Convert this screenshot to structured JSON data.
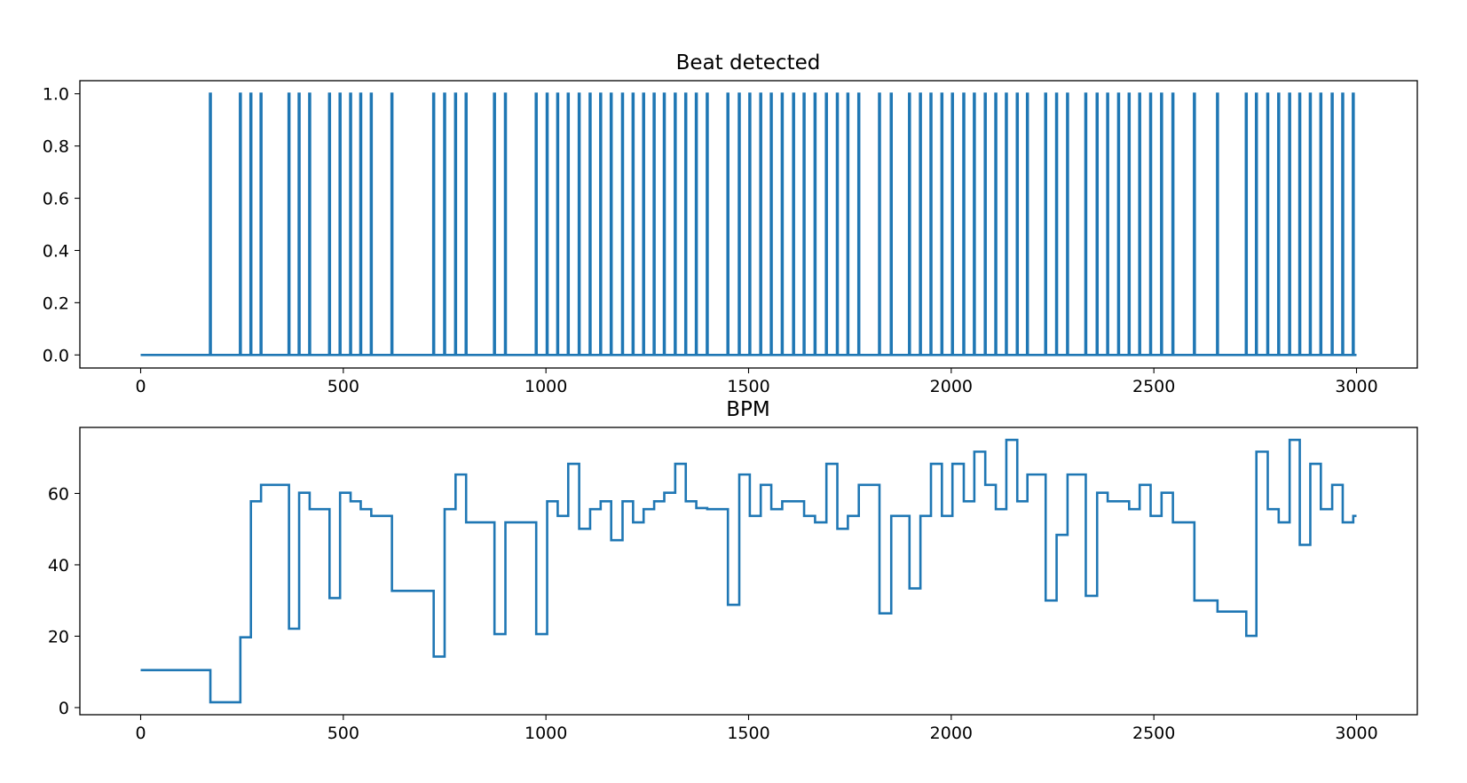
{
  "chart_data": [
    {
      "type": "line",
      "title": "Beat detected",
      "xlabel": "",
      "ylabel": "",
      "xlim": [
        -150,
        3150
      ],
      "ylim": [
        -0.05,
        1.05
      ],
      "xticks": [
        0,
        500,
        1000,
        1500,
        2000,
        2500,
        3000
      ],
      "xtick_labels": [
        "0",
        "500",
        "1000",
        "1500",
        "2000",
        "2500",
        "3000"
      ],
      "yticks": [
        0.0,
        0.2,
        0.4,
        0.6,
        0.8,
        1.0
      ],
      "ytick_labels": [
        "0.0",
        "0.2",
        "0.4",
        "0.6",
        "0.8",
        "1.0"
      ],
      "grid": false,
      "color": "#1f77b4",
      "x_range": [
        0,
        3000
      ],
      "beat_positions": [
        172,
        246,
        272,
        297,
        366,
        391,
        417,
        466,
        492,
        518,
        543,
        569,
        620,
        723,
        750,
        777,
        803,
        873,
        900,
        976,
        1003,
        1029,
        1055,
        1082,
        1109,
        1135,
        1161,
        1189,
        1215,
        1241,
        1267,
        1292,
        1319,
        1345,
        1371,
        1398,
        1449,
        1477,
        1503,
        1530,
        1556,
        1583,
        1611,
        1637,
        1664,
        1692,
        1719,
        1745,
        1772,
        1823,
        1852,
        1897,
        1924,
        1950,
        1977,
        2003,
        2031,
        2057,
        2084,
        2110,
        2136,
        2163,
        2188,
        2233,
        2260,
        2287,
        2332,
        2360,
        2386,
        2413,
        2439,
        2465,
        2492,
        2519,
        2547,
        2600,
        2657,
        2728,
        2753,
        2781,
        2808,
        2835,
        2860,
        2886,
        2912,
        2940,
        2966,
        2992
      ]
    },
    {
      "type": "line",
      "title": "BPM",
      "xlabel": "",
      "ylabel": "",
      "xlim": [
        -150,
        3150
      ],
      "ylim": [
        -2,
        78.5
      ],
      "xticks": [
        0,
        500,
        1000,
        1500,
        2000,
        2500,
        3000
      ],
      "xtick_labels": [
        "0",
        "500",
        "1000",
        "1500",
        "2000",
        "2500",
        "3000"
      ],
      "yticks": [
        0,
        20,
        40,
        60
      ],
      "ytick_labels": [
        "0",
        "20",
        "40",
        "60"
      ],
      "grid": false,
      "color": "#1f77b4",
      "drawstyle": "steps-post",
      "x": [
        0,
        172,
        246,
        272,
        297,
        366,
        391,
        417,
        466,
        492,
        518,
        543,
        569,
        620,
        723,
        750,
        777,
        803,
        873,
        900,
        976,
        1003,
        1029,
        1055,
        1082,
        1109,
        1135,
        1161,
        1189,
        1215,
        1241,
        1267,
        1292,
        1319,
        1345,
        1371,
        1398,
        1449,
        1477,
        1503,
        1530,
        1556,
        1583,
        1611,
        1637,
        1664,
        1692,
        1719,
        1745,
        1772,
        1823,
        1852,
        1897,
        1924,
        1950,
        1977,
        2003,
        2031,
        2057,
        2084,
        2110,
        2136,
        2163,
        2188,
        2233,
        2260,
        2287,
        2332,
        2360,
        2386,
        2413,
        2439,
        2465,
        2492,
        2519,
        2547,
        2600,
        2657,
        2728,
        2753,
        2781,
        2808,
        2835,
        2860,
        2886,
        2912,
        2940,
        2966,
        2992,
        3000
      ],
      "y": [
        10.5,
        1.5,
        19.7,
        57.8,
        62.4,
        22.1,
        60.2,
        55.6,
        30.7,
        60.2,
        57.8,
        55.6,
        53.7,
        32.7,
        14.3,
        55.6,
        65.3,
        51.9,
        20.6,
        51.9,
        20.6,
        57.8,
        53.7,
        68.3,
        50.1,
        55.6,
        57.8,
        46.9,
        57.8,
        51.9,
        55.6,
        57.8,
        60.2,
        68.3,
        57.8,
        55.9,
        55.6,
        28.8,
        65.3,
        53.7,
        62.4,
        55.6,
        57.8,
        57.8,
        53.7,
        51.9,
        68.3,
        50.1,
        53.7,
        62.4,
        26.4,
        53.7,
        33.4,
        53.7,
        68.3,
        53.7,
        68.3,
        57.8,
        71.7,
        62.4,
        55.6,
        75.0,
        57.8,
        65.3,
        30.0,
        48.4,
        65.3,
        31.3,
        60.2,
        57.8,
        57.8,
        55.6,
        62.4,
        53.7,
        60.2,
        51.9,
        30.0,
        26.9,
        20.1,
        71.7,
        55.6,
        51.9,
        75.0,
        45.6,
        68.3,
        55.6,
        62.4,
        51.9,
        53.7,
        53.7
      ]
    }
  ]
}
